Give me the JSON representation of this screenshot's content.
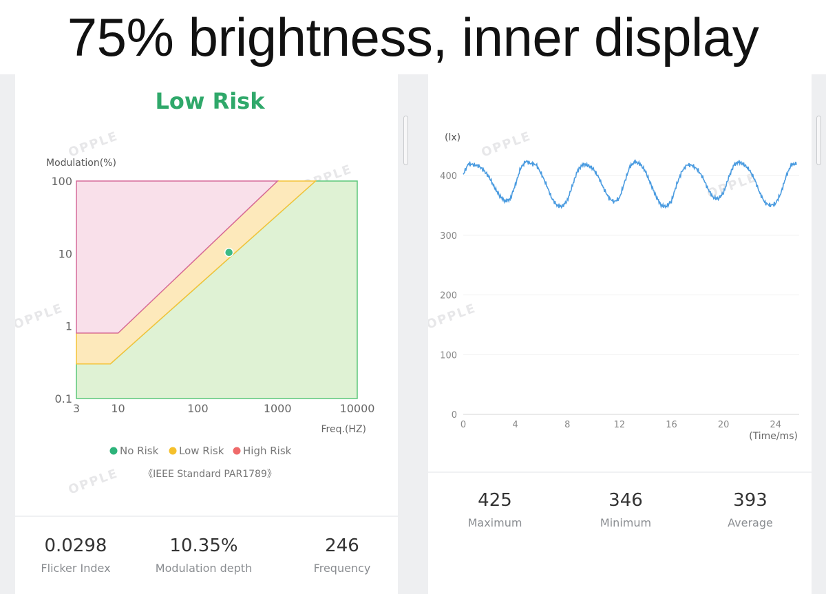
{
  "page_title": "75% brightness, inner display",
  "watermark": "OPPLE",
  "risk_chart": {
    "risk_level": "Low Risk",
    "ylabel": "Modulation(%)",
    "xlabel": "Freq.(HZ)",
    "y_ticks": [
      "100",
      "10",
      "1",
      "0.1"
    ],
    "x_ticks": [
      "3",
      "10",
      "100",
      "1000",
      "10000"
    ],
    "legend": [
      {
        "label": "No Risk",
        "color": "#2db37a"
      },
      {
        "label": "Low Risk",
        "color": "#f5c02c"
      },
      {
        "label": "High Risk",
        "color": "#ef6a6a"
      }
    ],
    "standard": "《IEEE Standard PAR1789》",
    "colors": {
      "no_risk_fill": "#dff2d4",
      "no_risk_line": "#5cc77a",
      "low_fill": "#fde9bb",
      "low_line": "#f4c338",
      "high_fill": "#f9e0ea",
      "high_line": "#d66a9a",
      "point": "#3dba86"
    }
  },
  "chart_data": [
    {
      "type": "scatter",
      "title": "Low Risk",
      "xlabel": "Freq.(HZ)",
      "ylabel": "Modulation(%)",
      "x_scale": "log",
      "y_scale": "log",
      "xlim": [
        3,
        10000
      ],
      "ylim": [
        0.1,
        100
      ],
      "points": [
        {
          "x": 246,
          "y": 10.35
        }
      ],
      "regions": [
        {
          "name": "High Risk",
          "boundary": [
            [
              3,
              0.8
            ],
            [
              10,
              0.8
            ],
            [
              1000,
              100
            ]
          ]
        },
        {
          "name": "Low Risk",
          "boundary": [
            [
              3,
              0.3
            ],
            [
              8,
              0.3
            ],
            [
              3000,
              100
            ]
          ]
        },
        {
          "name": "No Risk",
          "boundary": [
            [
              3,
              0.1
            ],
            [
              10000,
              0.1
            ]
          ]
        }
      ],
      "legend": [
        "No Risk",
        "Low Risk",
        "High Risk"
      ],
      "legend_position": "bottom"
    },
    {
      "type": "line",
      "ylabel": "(lx)",
      "xlabel": "(Time/ms)",
      "x_ticks": [
        0,
        4,
        8,
        12,
        16,
        20,
        24
      ],
      "y_ticks": [
        0,
        100,
        200,
        300,
        400
      ],
      "xlim": [
        0,
        25.6
      ],
      "ylim": [
        0,
        400
      ],
      "grid": true,
      "series": [
        {
          "color": "#4a9be0",
          "x": [
            0,
            0.4,
            0.8,
            1.2,
            1.6,
            2.0,
            2.4,
            2.8,
            3.2,
            3.6,
            4.0,
            4.4,
            4.8,
            5.2,
            5.6,
            6.0,
            6.4,
            6.8,
            7.2,
            7.6,
            8.0,
            8.4,
            8.8,
            9.2,
            9.6,
            10.0,
            10.4,
            10.8,
            11.2,
            11.6,
            12.0,
            12.4,
            12.8,
            13.2,
            13.6,
            14.0,
            14.4,
            14.8,
            15.2,
            15.6,
            16.0,
            16.4,
            16.8,
            17.2,
            17.6,
            18.0,
            18.4,
            18.8,
            19.2,
            19.6,
            20.0,
            20.4,
            20.8,
            21.2,
            21.6,
            22.0,
            22.4,
            22.8,
            23.2,
            23.6,
            24.0,
            24.4,
            24.8,
            25.2,
            25.6
          ],
          "values": [
            402,
            420,
            418,
            416,
            408,
            397,
            380,
            366,
            357,
            360,
            384,
            412,
            424,
            420,
            418,
            403,
            384,
            362,
            350,
            348,
            358,
            384,
            409,
            419,
            417,
            411,
            397,
            378,
            362,
            356,
            362,
            389,
            415,
            423,
            419,
            407,
            386,
            366,
            350,
            348,
            357,
            385,
            407,
            418,
            417,
            410,
            397,
            378,
            363,
            361,
            371,
            397,
            418,
            423,
            418,
            409,
            393,
            370,
            354,
            350,
            353,
            370,
            398,
            418,
            420
          ]
        }
      ]
    }
  ],
  "waveform": {
    "ylabel": "(lx)",
    "xlabel": "(Time/ms)",
    "y_ticks": [
      "400",
      "300",
      "200",
      "100",
      "0"
    ],
    "x_ticks": [
      "0",
      "4",
      "8",
      "12",
      "16",
      "20",
      "24"
    ]
  },
  "left_stats": [
    {
      "value": "0.0298",
      "label": "Flicker Index"
    },
    {
      "value": "10.35%",
      "label": "Modulation depth"
    },
    {
      "value": "246",
      "label": "Frequency"
    }
  ],
  "right_stats": [
    {
      "value": "425",
      "label": "Maximum"
    },
    {
      "value": "346",
      "label": "Minimum"
    },
    {
      "value": "393",
      "label": "Average"
    }
  ]
}
